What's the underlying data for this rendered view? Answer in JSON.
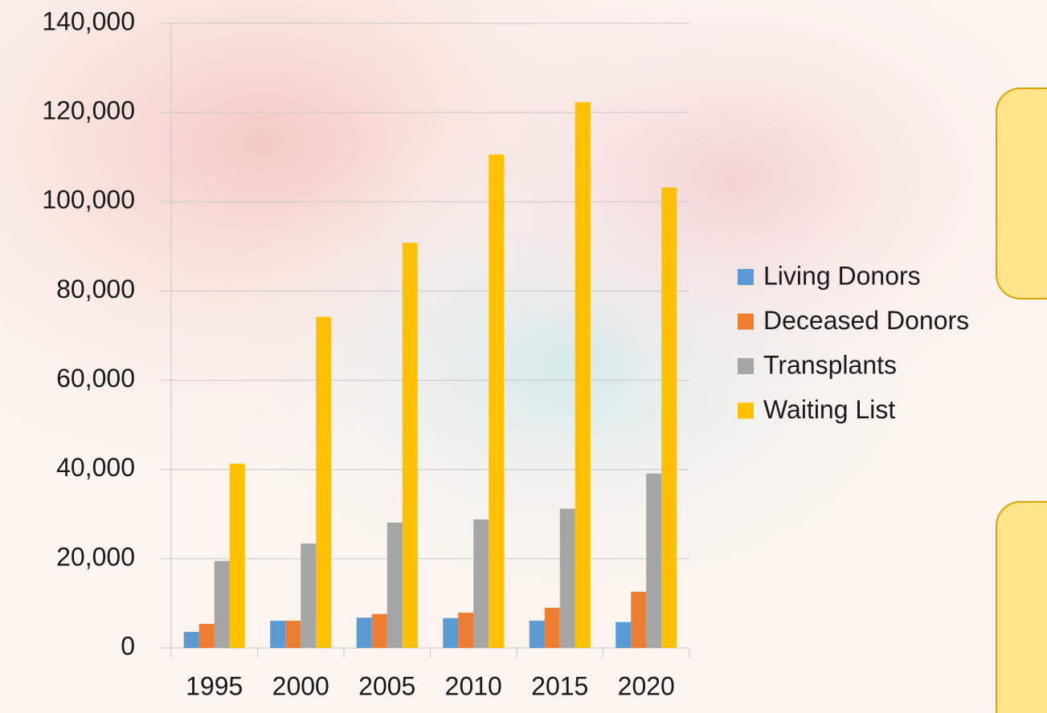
{
  "chart_data": {
    "type": "bar",
    "categories": [
      "1995",
      "2000",
      "2005",
      "2010",
      "2015",
      "2020"
    ],
    "series": [
      {
        "name": "Living Donors",
        "color": "#5b9bd5",
        "values": [
          3600,
          6100,
          6800,
          6700,
          6100,
          5800
        ]
      },
      {
        "name": "Deceased Donors",
        "color": "#ed7d31",
        "values": [
          5400,
          6100,
          7600,
          7900,
          9000,
          12600
        ]
      },
      {
        "name": "Transplants",
        "color": "#a5a5a5",
        "values": [
          19500,
          23400,
          28100,
          28800,
          31200,
          39100
        ]
      },
      {
        "name": "Waiting List",
        "color": "#ffc000",
        "values": [
          41300,
          74200,
          90800,
          110600,
          122300,
          103200
        ]
      }
    ],
    "ylim": [
      0,
      140000
    ],
    "yticks": [
      0,
      {
        "value": 20000,
        "label": "20,000"
      },
      {
        "value": 40000,
        "label": "40,000"
      },
      {
        "value": 60000,
        "label": "60,000"
      },
      {
        "value": 80000,
        "label": "80,000"
      },
      {
        "value": 100000,
        "label": "100,000"
      },
      {
        "value": 120000,
        "label": "120,000"
      },
      {
        "value": 140000,
        "label": "140,000"
      }
    ],
    "grid": true,
    "legend": "right"
  }
}
